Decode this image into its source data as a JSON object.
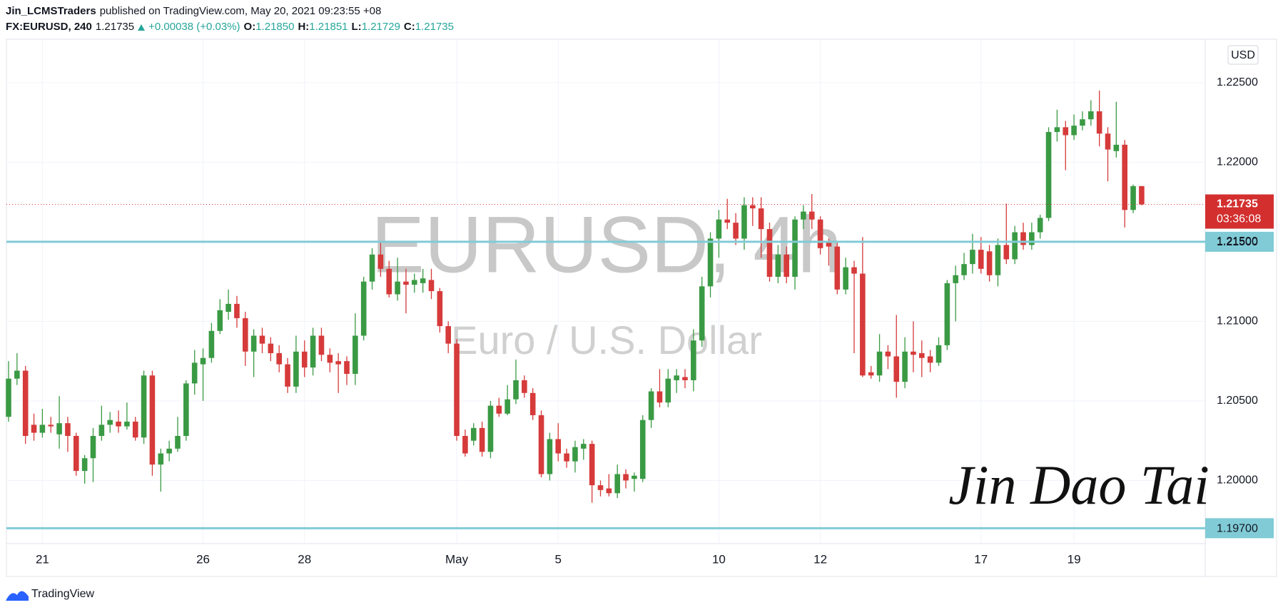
{
  "header": {
    "author": "Jin_LCMSTraders",
    "published": "published on TradingView.com, May 20, 2021 09:23:55 +08",
    "symbol": "FX:EURUSD, 240",
    "price": "1.21735",
    "change": "+0.00038 (+0.03%)",
    "o_label": "O:",
    "o": "1.21850",
    "h_label": "H:",
    "h": "1.21851",
    "l_label": "L:",
    "l": "1.21729",
    "c_label": "C:",
    "c": "1.21735"
  },
  "footer": {
    "brand": "TradingView"
  },
  "chart_data": {
    "type": "candlestick",
    "title": "EURUSD, 4h",
    "subtitle": "Euro / U.S. Dollar",
    "currency": "USD",
    "signature": "Jin Dao Tai",
    "up_color": "#3a9a44",
    "down_color": "#d63a3a",
    "grid": true,
    "ylim": [
      1.19603,
      1.22773
    ],
    "yticks": [
      {
        "value": 1.2,
        "label": "1.20000"
      },
      {
        "value": 1.205,
        "label": "1.20500"
      },
      {
        "value": 1.21,
        "label": "1.21000"
      },
      {
        "value": 1.215,
        "label": "1.21500"
      },
      {
        "value": 1.22,
        "label": "1.22000"
      },
      {
        "value": 1.225,
        "label": "1.22500"
      }
    ],
    "hlines": [
      {
        "value": 1.215,
        "label": "1.21500"
      },
      {
        "value": 1.197,
        "label": "1.19700"
      }
    ],
    "hline_color": "#80cbd6",
    "last_price": {
      "value": 1.21735,
      "label": "1.21735"
    },
    "countdown": "03:36:08",
    "categories": [
      null,
      null,
      null,
      null,
      "21",
      null,
      null,
      null,
      null,
      null,
      null,
      null,
      null,
      null,
      null,
      null,
      null,
      null,
      null,
      null,
      null,
      null,
      null,
      "26",
      null,
      null,
      null,
      null,
      null,
      null,
      null,
      null,
      null,
      null,
      null,
      "28",
      null,
      null,
      null,
      null,
      null,
      null,
      null,
      null,
      null,
      null,
      null,
      null,
      null,
      null,
      null,
      null,
      null,
      "May",
      null,
      null,
      null,
      null,
      null,
      null,
      null,
      null,
      null,
      null,
      null,
      "5",
      null,
      null,
      null,
      null,
      null,
      null,
      null,
      null,
      null,
      null,
      null,
      null,
      null,
      null,
      null,
      null,
      null,
      null,
      "10",
      null,
      null,
      null,
      null,
      null,
      null,
      null,
      null,
      null,
      null,
      null,
      "12",
      null,
      null,
      null,
      null,
      null,
      null,
      null,
      null,
      null,
      null,
      null,
      null,
      null,
      null,
      null,
      null,
      null,
      null,
      "17",
      null,
      null,
      null,
      null,
      null,
      null,
      null,
      null,
      null,
      null,
      "19",
      null,
      null,
      null,
      null,
      null,
      null,
      null,
      null
    ],
    "open": [
      1.204,
      1.2064,
      1.2069,
      1.2035,
      1.203,
      1.2035,
      1.2029,
      1.2036,
      1.2028,
      1.2006,
      1.2014,
      1.2028,
      1.2035,
      1.2037,
      1.2034,
      1.2037,
      1.2027,
      1.2066,
      1.201,
      1.2017,
      1.202,
      1.2028,
      1.2061,
      1.2073,
      1.2077,
      1.2094,
      1.2106,
      1.2111,
      1.2102,
      1.2081,
      1.2091,
      1.2086,
      1.208,
      1.2073,
      1.2059,
      1.2081,
      1.2071,
      1.2091,
      1.2079,
      1.2075,
      1.2075,
      1.2067,
      1.2091,
      1.2125,
      1.2142,
      1.2133,
      1.2117,
      1.2125,
      1.2123,
      1.2124,
      1.2126,
      1.2119,
      1.2097,
      1.2086,
      1.2028,
      1.2025,
      1.2033,
      1.2018,
      1.2047,
      1.2042,
      1.2051,
      1.2063,
      1.2055,
      1.2041,
      1.2004,
      1.2026,
      1.2017,
      1.2012,
      1.202,
      1.2023,
      1.1997,
      1.1995,
      1.1992,
      1.2004,
      1.2001,
      1.2001,
      1.2038,
      1.2056,
      1.2049,
      1.2063,
      1.2065,
      1.2063,
      1.2088,
      1.2122,
      1.2152,
      1.2164,
      1.2162,
      1.2152,
      1.2173,
      1.2171,
      1.2158,
      1.2128,
      1.2142,
      1.2128,
      1.2164,
      1.2169,
      1.2164,
      1.215,
      1.2147,
      1.212,
      1.2134,
      1.213,
      1.2068,
      1.2066,
      1.2081,
      1.2078,
      1.2062,
      1.2081,
      1.208,
      1.2078,
      1.2074,
      1.2085,
      1.2124,
      1.2129,
      1.2136,
      1.2145,
      1.2144,
      1.2129,
      1.2148,
      1.2139,
      1.2156,
      1.2148,
      1.2156,
      1.2165,
      1.2219,
      1.2222,
      1.2217,
      1.2223,
      1.2227,
      1.2232,
      1.2218,
      1.2207,
      1.2211,
      1.217,
      1.2185
    ],
    "high": [
      1.2075,
      1.208,
      1.2072,
      1.2042,
      1.2045,
      1.204,
      1.2053,
      1.204,
      1.203,
      1.2016,
      1.2033,
      1.2047,
      1.2043,
      1.2044,
      1.2049,
      1.204,
      1.2069,
      1.2069,
      1.202,
      1.2025,
      1.204,
      1.2063,
      1.2082,
      1.2083,
      1.2099,
      1.2114,
      1.212,
      1.2116,
      1.2106,
      1.2095,
      1.2096,
      1.209,
      1.2085,
      1.2077,
      1.2091,
      1.2088,
      1.2096,
      1.2096,
      1.2083,
      1.208,
      1.2078,
      1.2105,
      1.2128,
      1.2146,
      1.215,
      1.2138,
      1.214,
      1.2133,
      1.213,
      1.2133,
      1.2133,
      1.2121,
      1.21,
      1.2089,
      1.2032,
      1.2036,
      1.2037,
      1.205,
      1.2052,
      1.206,
      1.2076,
      1.2066,
      1.2058,
      1.2044,
      1.203,
      1.2036,
      1.202,
      1.2025,
      1.2026,
      1.2025,
      1.2,
      1.2004,
      1.201,
      1.2007,
      1.2005,
      1.2041,
      1.2058,
      1.207,
      1.207,
      1.207,
      1.207,
      1.2095,
      1.2128,
      1.2156,
      1.217,
      1.2177,
      1.2168,
      1.2178,
      1.2178,
      1.2178,
      1.2162,
      1.2148,
      1.2147,
      1.2166,
      1.2173,
      1.218,
      1.2166,
      1.2152,
      1.215,
      1.214,
      1.2138,
      1.2153,
      1.2072,
      1.2092,
      1.2085,
      1.2104,
      1.209,
      1.21,
      1.2088,
      1.2082,
      1.209,
      1.2126,
      1.2135,
      1.2143,
      1.2155,
      1.2153,
      1.2148,
      1.2152,
      1.2174,
      1.216,
      1.2162,
      1.2162,
      1.2167,
      1.2222,
      1.2233,
      1.2226,
      1.223,
      1.2232,
      1.2239,
      1.2245,
      1.2222,
      1.2238,
      1.2214,
      1.2186,
      1.21851
    ],
    "low": [
      1.2037,
      1.206,
      1.2023,
      1.2025,
      1.2027,
      1.203,
      1.202,
      1.2018,
      1.2003,
      1.1998,
      1.1999,
      1.2025,
      1.203,
      1.203,
      1.2032,
      1.2025,
      1.2023,
      1.2003,
      1.1993,
      1.2012,
      1.2018,
      1.2025,
      1.2054,
      1.205,
      1.2074,
      1.2092,
      1.2101,
      1.2096,
      1.2072,
      1.2065,
      1.208,
      1.2075,
      1.2068,
      1.2055,
      1.2055,
      1.2065,
      1.2066,
      1.2075,
      1.2068,
      1.2055,
      1.206,
      1.206,
      1.2088,
      1.212,
      1.2128,
      1.2115,
      1.2113,
      1.2105,
      1.2118,
      1.2118,
      1.2114,
      1.2093,
      1.208,
      1.2025,
      1.2015,
      1.2022,
      1.2015,
      1.2014,
      1.204,
      1.2041,
      1.2048,
      1.2052,
      1.2038,
      1.2002,
      1.2,
      1.2012,
      1.2008,
      1.2005,
      1.2013,
      1.1986,
      1.199,
      1.199,
      1.1989,
      1.1995,
      1.1993,
      1.1999,
      1.2033,
      1.2046,
      1.2046,
      1.2055,
      1.2058,
      1.2056,
      1.2084,
      1.2115,
      1.214,
      1.2158,
      1.2148,
      1.2145,
      1.216,
      1.214,
      1.2125,
      1.2124,
      1.2124,
      1.212,
      1.2158,
      1.2158,
      1.2142,
      1.2135,
      1.2117,
      1.2117,
      1.208,
      1.2065,
      1.2064,
      1.2062,
      1.207,
      1.2052,
      1.2058,
      1.2068,
      1.2065,
      1.2068,
      1.2072,
      1.2082,
      1.21,
      1.2126,
      1.213,
      1.213,
      1.2125,
      1.2122,
      1.2136,
      1.2136,
      1.2145,
      1.2145,
      1.2152,
      1.2163,
      1.2213,
      1.2195,
      1.2214,
      1.222,
      1.2223,
      1.221,
      1.2188,
      1.2203,
      1.2159,
      1.2168,
      1.21729
    ],
    "close": [
      1.2064,
      1.2069,
      1.2028,
      1.203,
      1.2035,
      1.2034,
      1.2036,
      1.2028,
      1.2006,
      1.2014,
      1.2028,
      1.2035,
      1.2038,
      1.2034,
      1.2037,
      1.2027,
      1.2066,
      1.201,
      1.2017,
      1.202,
      1.2028,
      1.2061,
      1.2074,
      1.2077,
      1.2094,
      1.2107,
      1.2111,
      1.2102,
      1.2081,
      1.2091,
      1.2086,
      1.208,
      1.2073,
      1.2059,
      1.2081,
      1.2071,
      1.2091,
      1.2079,
      1.2074,
      1.2073,
      1.2067,
      1.2091,
      1.2125,
      1.2142,
      1.2133,
      1.2117,
      1.2125,
      1.2123,
      1.2126,
      1.2127,
      1.2119,
      1.2097,
      1.2086,
      1.2028,
      1.2017,
      1.2033,
      1.2018,
      1.2047,
      1.2042,
      1.2051,
      1.2063,
      1.2055,
      1.2041,
      1.2004,
      1.2026,
      1.2017,
      1.2012,
      1.2021,
      1.2023,
      1.1997,
      1.1994,
      1.1992,
      1.2004,
      1.2,
      1.2003,
      1.2038,
      1.2056,
      1.2049,
      1.2064,
      1.2066,
      1.2063,
      1.2088,
      1.2122,
      1.2152,
      1.2164,
      1.2162,
      1.2152,
      1.2173,
      1.2171,
      1.2158,
      1.2128,
      1.2142,
      1.2128,
      1.2164,
      1.2169,
      1.2164,
      1.2146,
      1.2147,
      1.212,
      1.2134,
      1.213,
      1.2066,
      1.2066,
      1.2081,
      1.2078,
      1.2062,
      1.2081,
      1.2079,
      1.2077,
      1.2074,
      1.2085,
      1.2124,
      1.2129,
      1.2136,
      1.2145,
      1.2133,
      1.2129,
      1.2148,
      1.2139,
      1.2156,
      1.2148,
      1.2156,
      1.2165,
      1.2219,
      1.2222,
      1.2217,
      1.2223,
      1.2227,
      1.2232,
      1.2218,
      1.2208,
      1.2211,
      1.217,
      1.2185,
      1.21735
    ]
  }
}
